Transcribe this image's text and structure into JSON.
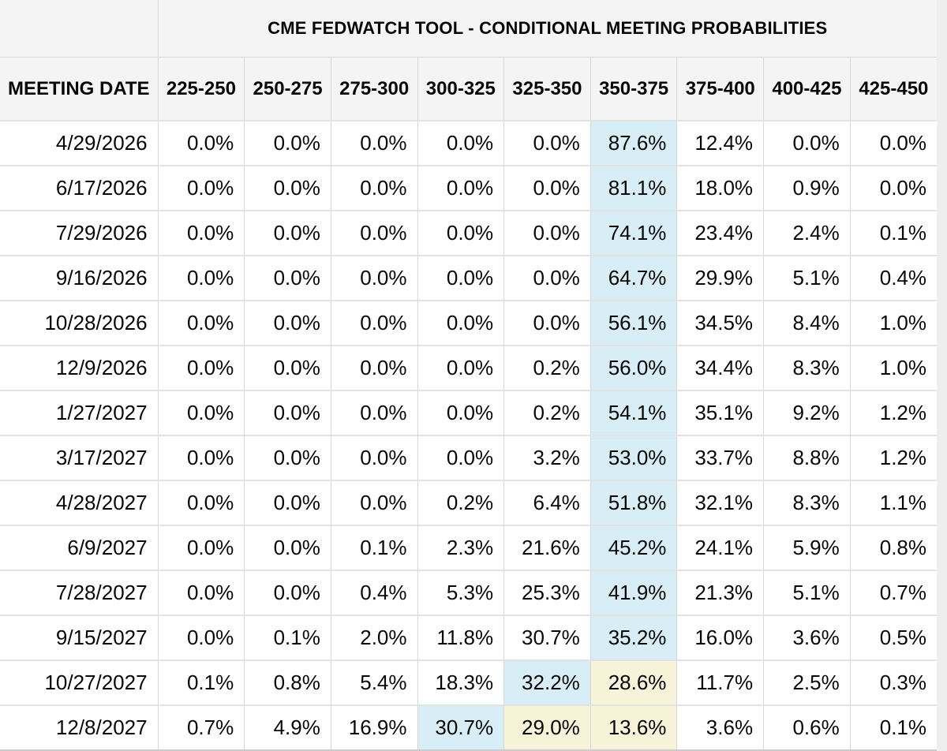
{
  "page": {
    "background": "#eeeeee"
  },
  "table": {
    "title": "CME FEDWATCH TOOL - CONDITIONAL MEETING PROBABILITIES",
    "corner_label": "",
    "date_column_header": "MEETING DATE",
    "rate_range_headers": [
      "225-250",
      "250-275",
      "275-300",
      "300-325",
      "325-350",
      "350-375",
      "375-400",
      "400-425",
      "425-450"
    ],
    "highlight_colors": {
      "blue": "#d7eef7",
      "yellow": "#f6f3d8"
    },
    "rows": [
      {
        "date": "4/29/2026",
        "values": [
          "0.0%",
          "0.0%",
          "0.0%",
          "0.0%",
          "0.0%",
          "87.6%",
          "12.4%",
          "0.0%",
          "0.0%"
        ],
        "highlights": [
          "",
          "",
          "",
          "",
          "",
          "blue",
          "",
          "",
          ""
        ]
      },
      {
        "date": "6/17/2026",
        "values": [
          "0.0%",
          "0.0%",
          "0.0%",
          "0.0%",
          "0.0%",
          "81.1%",
          "18.0%",
          "0.9%",
          "0.0%"
        ],
        "highlights": [
          "",
          "",
          "",
          "",
          "",
          "blue",
          "",
          "",
          ""
        ]
      },
      {
        "date": "7/29/2026",
        "values": [
          "0.0%",
          "0.0%",
          "0.0%",
          "0.0%",
          "0.0%",
          "74.1%",
          "23.4%",
          "2.4%",
          "0.1%"
        ],
        "highlights": [
          "",
          "",
          "",
          "",
          "",
          "blue",
          "",
          "",
          ""
        ]
      },
      {
        "date": "9/16/2026",
        "values": [
          "0.0%",
          "0.0%",
          "0.0%",
          "0.0%",
          "0.0%",
          "64.7%",
          "29.9%",
          "5.1%",
          "0.4%"
        ],
        "highlights": [
          "",
          "",
          "",
          "",
          "",
          "blue",
          "",
          "",
          ""
        ]
      },
      {
        "date": "10/28/2026",
        "values": [
          "0.0%",
          "0.0%",
          "0.0%",
          "0.0%",
          "0.0%",
          "56.1%",
          "34.5%",
          "8.4%",
          "1.0%"
        ],
        "highlights": [
          "",
          "",
          "",
          "",
          "",
          "blue",
          "",
          "",
          ""
        ]
      },
      {
        "date": "12/9/2026",
        "values": [
          "0.0%",
          "0.0%",
          "0.0%",
          "0.0%",
          "0.2%",
          "56.0%",
          "34.4%",
          "8.3%",
          "1.0%"
        ],
        "highlights": [
          "",
          "",
          "",
          "",
          "",
          "blue",
          "",
          "",
          ""
        ]
      },
      {
        "date": "1/27/2027",
        "values": [
          "0.0%",
          "0.0%",
          "0.0%",
          "0.0%",
          "0.2%",
          "54.1%",
          "35.1%",
          "9.2%",
          "1.2%"
        ],
        "highlights": [
          "",
          "",
          "",
          "",
          "",
          "blue",
          "",
          "",
          ""
        ]
      },
      {
        "date": "3/17/2027",
        "values": [
          "0.0%",
          "0.0%",
          "0.0%",
          "0.0%",
          "3.2%",
          "53.0%",
          "33.7%",
          "8.8%",
          "1.2%"
        ],
        "highlights": [
          "",
          "",
          "",
          "",
          "",
          "blue",
          "",
          "",
          ""
        ]
      },
      {
        "date": "4/28/2027",
        "values": [
          "0.0%",
          "0.0%",
          "0.0%",
          "0.2%",
          "6.4%",
          "51.8%",
          "32.1%",
          "8.3%",
          "1.1%"
        ],
        "highlights": [
          "",
          "",
          "",
          "",
          "",
          "blue",
          "",
          "",
          ""
        ]
      },
      {
        "date": "6/9/2027",
        "values": [
          "0.0%",
          "0.0%",
          "0.1%",
          "2.3%",
          "21.6%",
          "45.2%",
          "24.1%",
          "5.9%",
          "0.8%"
        ],
        "highlights": [
          "",
          "",
          "",
          "",
          "",
          "blue",
          "",
          "",
          ""
        ]
      },
      {
        "date": "7/28/2027",
        "values": [
          "0.0%",
          "0.0%",
          "0.4%",
          "5.3%",
          "25.3%",
          "41.9%",
          "21.3%",
          "5.1%",
          "0.7%"
        ],
        "highlights": [
          "",
          "",
          "",
          "",
          "",
          "blue",
          "",
          "",
          ""
        ]
      },
      {
        "date": "9/15/2027",
        "values": [
          "0.0%",
          "0.1%",
          "2.0%",
          "11.8%",
          "30.7%",
          "35.2%",
          "16.0%",
          "3.6%",
          "0.5%"
        ],
        "highlights": [
          "",
          "",
          "",
          "",
          "",
          "blue",
          "",
          "",
          ""
        ]
      },
      {
        "date": "10/27/2027",
        "values": [
          "0.1%",
          "0.8%",
          "5.4%",
          "18.3%",
          "32.2%",
          "28.6%",
          "11.7%",
          "2.5%",
          "0.3%"
        ],
        "highlights": [
          "",
          "",
          "",
          "",
          "blue",
          "yellow",
          "",
          "",
          ""
        ]
      },
      {
        "date": "12/8/2027",
        "values": [
          "0.7%",
          "4.9%",
          "16.9%",
          "30.7%",
          "29.0%",
          "13.6%",
          "3.6%",
          "0.6%",
          "0.1%"
        ],
        "highlights": [
          "",
          "",
          "",
          "blue",
          "yellow",
          "yellow",
          "",
          "",
          ""
        ]
      }
    ]
  }
}
